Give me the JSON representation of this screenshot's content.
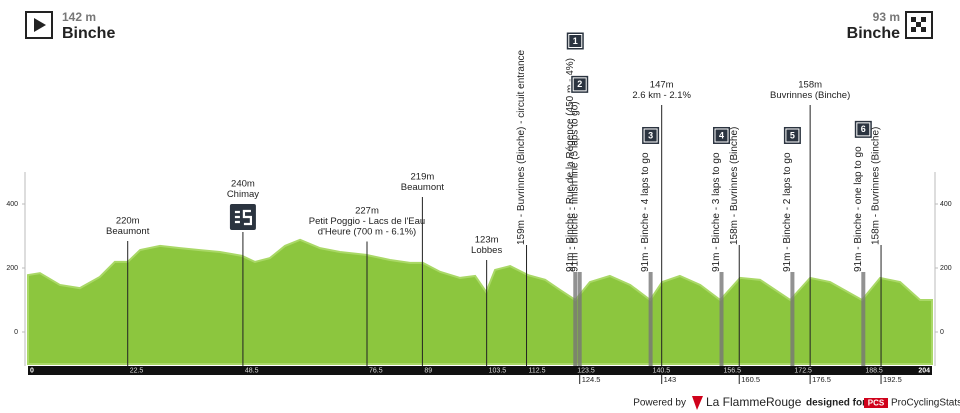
{
  "chart_data": {
    "type": "area",
    "color": "#8cc63e",
    "start": {
      "altitude": "142 m",
      "name": "Binche"
    },
    "finish": {
      "altitude": "93 m",
      "name": "Binche"
    },
    "x": [
      0,
      2.7,
      7.2,
      11.7,
      16.2,
      19.6,
      22.5,
      25.3,
      29.8,
      34.3,
      38.8,
      43.3,
      48.3,
      51.2,
      54.6,
      58,
      61.4,
      65.9,
      70.4,
      76.3,
      81.7,
      86.2,
      89.1,
      93,
      97.5,
      100.9,
      103.4,
      105.4,
      108.8,
      112.8,
      116.7,
      120.1,
      123.5,
      126.8,
      131.3,
      135.9,
      140.4,
      143.1,
      147.1,
      151.7,
      156.2,
      160.7,
      165.2,
      172,
      176.5,
      181,
      188.2,
      192.3,
      196.8,
      201.3,
      204
    ],
    "values": [
      178,
      184,
      147,
      137,
      172,
      219,
      219,
      256,
      269,
      262,
      256,
      250,
      238,
      219,
      231,
      269,
      288,
      262,
      250,
      241,
      225,
      216,
      216,
      188,
      169,
      175,
      125,
      194,
      206,
      178,
      163,
      131,
      100,
      156,
      175,
      147,
      100,
      156,
      175,
      147,
      100,
      169,
      163,
      100,
      169,
      156,
      100,
      169,
      156,
      100,
      100
    ],
    "xlim": [
      0,
      204
    ],
    "ylim": [
      -100,
      500
    ],
    "yticks": [
      0,
      200,
      400
    ],
    "annotations": [
      {
        "x": 22.5,
        "lines": [
          "220m",
          "Beaumont"
        ]
      },
      {
        "x": 48.5,
        "lines": [
          "240m",
          "Chimay"
        ],
        "sprint": true
      },
      {
        "x": 76.5,
        "lines": [
          "227m",
          "Petit Poggio - Lacs de l'Eau",
          "d'Heure (700 m - 6.1%)"
        ]
      },
      {
        "x": 89,
        "lines": [
          "219m",
          "Beaumont"
        ]
      },
      {
        "x": 103.5,
        "lines": [
          "123m",
          "Lobbes"
        ]
      },
      {
        "x": 112.5,
        "text": "159m - Buvrinnes (Binche) - circuit entrance"
      },
      {
        "x": 123.5,
        "text": "91m - Binche - Rue de la Régence (450 m - 4%)",
        "badge": "1"
      },
      {
        "x": 124.5,
        "text": "91m - Binche - finish line (5 laps to go)",
        "badge": "2"
      },
      {
        "x": 140.5,
        "text": "91m - Binche - 4 laps to go",
        "badge": "3"
      },
      {
        "x": 143,
        "lines": [
          "147m",
          "2.6 km - 2.1%"
        ]
      },
      {
        "x": 156.5,
        "text": "91m - Binche - 3 laps to go",
        "badge": "4"
      },
      {
        "x": 160.5,
        "text": "158m - Buvrinnes (Binche)"
      },
      {
        "x": 172.5,
        "text": "91m - Binche - 2 laps to go",
        "badge": "5"
      },
      {
        "x": 176.5,
        "lines": [
          "158m",
          "Buvrinnes (Binche)"
        ]
      },
      {
        "x": 188.5,
        "text": "91m - Binche - one lap to go",
        "badge": "6"
      },
      {
        "x": 192.5,
        "text": "158m - Buvrinnes (Binche)"
      }
    ]
  },
  "footer": {
    "powered": "Powered by",
    "brand": "La FlammeRouge",
    "designed": "designed for",
    "pcs": "PCS",
    "site": "ProCyclingStats"
  }
}
